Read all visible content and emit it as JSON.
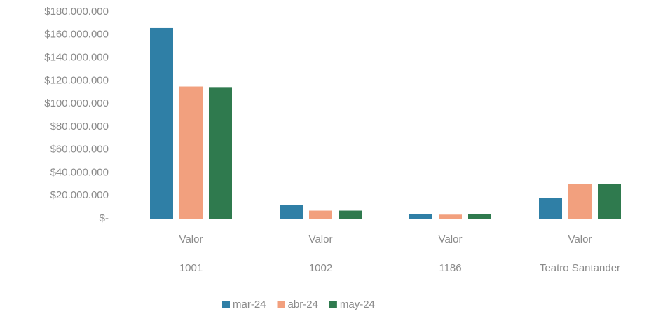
{
  "chart_data": {
    "type": "bar",
    "categories": [
      "1001",
      "1002",
      "1186",
      "Teatro Santander"
    ],
    "sub_categories": [
      "Valor",
      "Valor",
      "Valor",
      "Valor"
    ],
    "series": [
      {
        "name": "mar-24",
        "color": "#2f7fa6",
        "values": [
          166000000,
          12000000,
          4000000,
          18000000
        ]
      },
      {
        "name": "abr-24",
        "color": "#f2a07e",
        "values": [
          115000000,
          7000000,
          3500000,
          30500000
        ]
      },
      {
        "name": "may-24",
        "color": "#2f7a4e",
        "values": [
          114500000,
          7000000,
          4000000,
          30000000
        ]
      }
    ],
    "ylim": [
      0,
      180000000
    ],
    "yticks": [
      {
        "value": 0,
        "label": "$-"
      },
      {
        "value": 20000000,
        "label": "$20.000.000"
      },
      {
        "value": 40000000,
        "label": "$40.000.000"
      },
      {
        "value": 60000000,
        "label": "$60.000.000"
      },
      {
        "value": 80000000,
        "label": "$80.000.000"
      },
      {
        "value": 100000000,
        "label": "$100.000.000"
      },
      {
        "value": 120000000,
        "label": "$120.000.000"
      },
      {
        "value": 140000000,
        "label": "$140.000.000"
      },
      {
        "value": 160000000,
        "label": "$160.000.000"
      },
      {
        "value": 180000000,
        "label": "$180.000.000"
      }
    ],
    "grid": false,
    "legend": "bottom"
  }
}
